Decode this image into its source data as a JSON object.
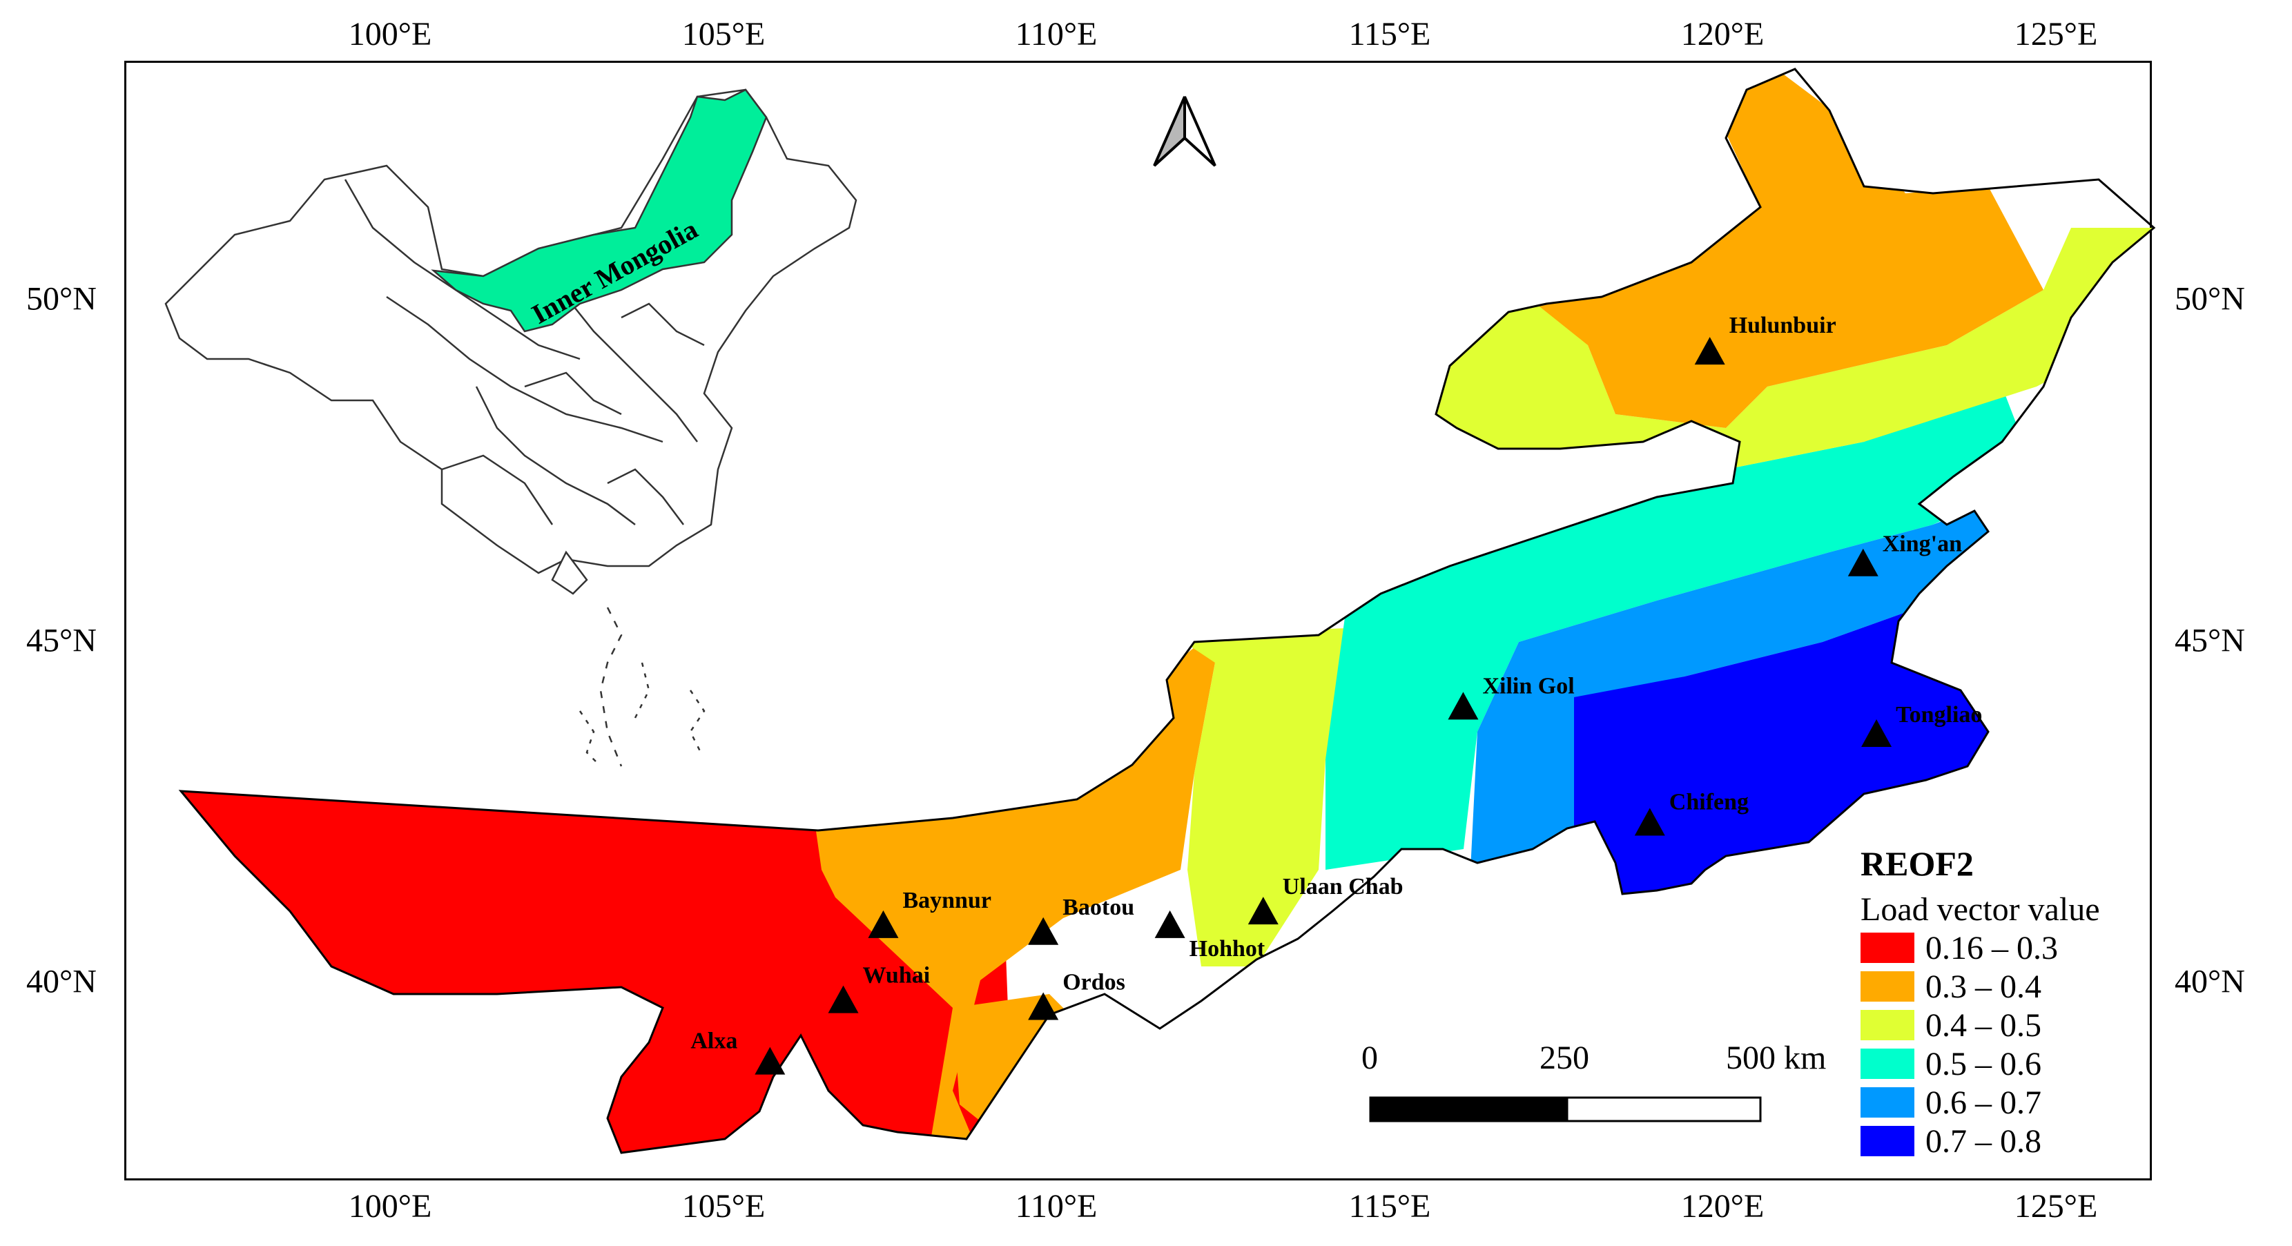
{
  "axes": {
    "lon_ticks": [
      "100°E",
      "105°E",
      "110°E",
      "115°E",
      "120°E",
      "125°E"
    ],
    "lat_ticks": [
      "50°N",
      "45°N",
      "40°N"
    ]
  },
  "inset": {
    "region_label": "Inner Mongolia",
    "highlight_color": "#00ee9a"
  },
  "cities": [
    {
      "name": "Hulunbuir",
      "lon": 119.8,
      "lat": 49.2
    },
    {
      "name": "Xing'an",
      "lon": 122.1,
      "lat": 46.1
    },
    {
      "name": "Xilin Gol",
      "lon": 116.1,
      "lat": 44.0
    },
    {
      "name": "Tongliao",
      "lon": 122.3,
      "lat": 43.6
    },
    {
      "name": "Chifeng",
      "lon": 118.9,
      "lat": 42.3
    },
    {
      "name": "Ulaan Chab",
      "lon": 113.1,
      "lat": 41.0
    },
    {
      "name": "Hohhot",
      "lon": 111.7,
      "lat": 40.8
    },
    {
      "name": "Baotou",
      "lon": 109.8,
      "lat": 40.7
    },
    {
      "name": "Baynnur",
      "lon": 107.4,
      "lat": 40.8
    },
    {
      "name": "Wuhai",
      "lon": 106.8,
      "lat": 39.7
    },
    {
      "name": "Ordos",
      "lon": 109.8,
      "lat": 39.6
    },
    {
      "name": "Alxa",
      "lon": 105.7,
      "lat": 38.8
    }
  ],
  "legend": {
    "title": "REOF2",
    "subtitle": "Load vector value",
    "classes": [
      {
        "label": "0.16 – 0.3",
        "color": "#ff0000"
      },
      {
        "label": "0.3 – 0.4",
        "color": "#ffaa00"
      },
      {
        "label": "0.4 – 0.5",
        "color": "#e0ff33"
      },
      {
        "label": "0.5 – 0.6",
        "color": "#00ffcc"
      },
      {
        "label": "0.6 – 0.7",
        "color": "#0099ff"
      },
      {
        "label": "0.7 – 0.8",
        "color": "#0000ff"
      }
    ]
  },
  "scale_bar": {
    "labels": [
      "0",
      "250",
      "500 km"
    ]
  },
  "north_arrow": "north-arrow-icon"
}
